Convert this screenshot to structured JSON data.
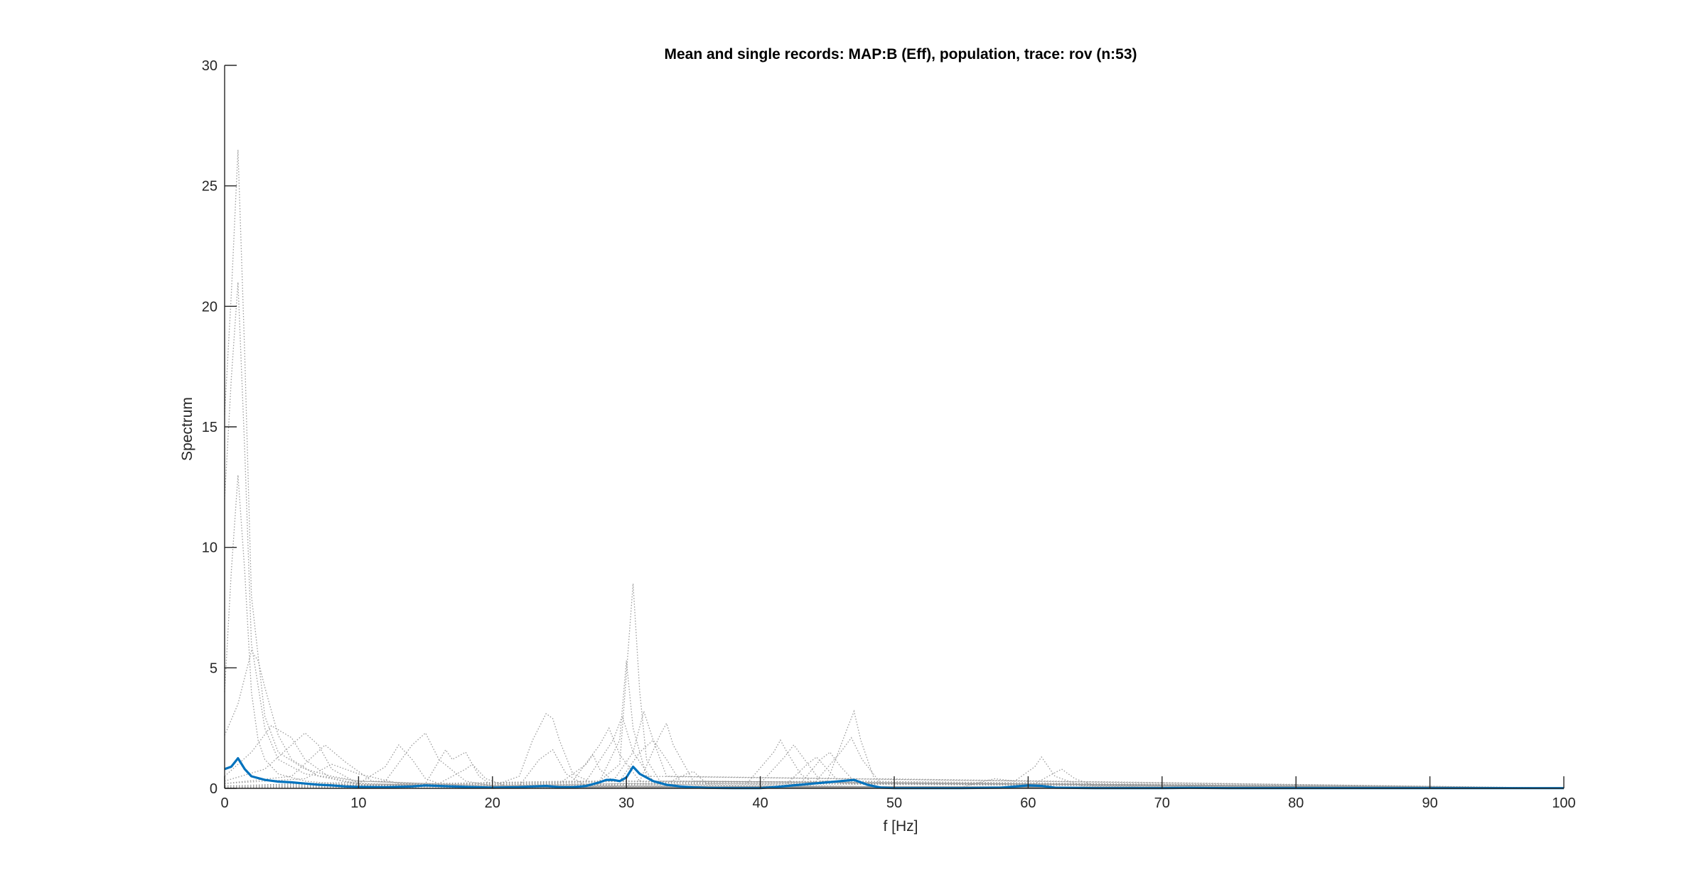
{
  "chart_data": {
    "type": "line",
    "title": "Mean and single records: MAP:B (Eff), population, trace: rov (n:53)",
    "xlabel": "f [Hz]",
    "ylabel": "Spectrum",
    "xlim": [
      0,
      100
    ],
    "ylim": [
      0,
      30
    ],
    "xticks": [
      0,
      10,
      20,
      30,
      40,
      50,
      60,
      70,
      80,
      90,
      100
    ],
    "yticks": [
      0,
      5,
      10,
      15,
      20,
      25,
      30
    ],
    "xtick_labels": [
      "0",
      "10",
      "20",
      "30",
      "40",
      "50",
      "60",
      "70",
      "80",
      "90",
      "100"
    ],
    "ytick_labels": [
      "0",
      "5",
      "10",
      "15",
      "20",
      "25",
      "30"
    ],
    "grid": false,
    "colors": {
      "mean": "#0072BD",
      "single": "#9a9a9a",
      "axis": "#262626"
    },
    "series": [
      {
        "role": "mean",
        "style": "solid",
        "x": [
          0,
          0.5,
          1,
          1.5,
          2,
          3,
          4,
          5,
          6,
          7,
          8,
          9,
          10,
          12,
          14,
          15,
          16,
          18,
          20,
          22,
          24,
          25,
          26,
          27,
          28,
          28.5,
          29,
          29.5,
          30,
          30.5,
          31,
          31.5,
          32,
          33,
          34,
          35,
          36,
          38,
          40,
          41,
          42,
          43,
          44,
          45,
          46,
          47,
          48,
          49,
          50,
          55,
          58,
          60,
          61,
          62,
          65,
          70,
          72,
          75,
          80,
          90,
          100
        ],
        "y": [
          0.8,
          0.9,
          1.25,
          0.8,
          0.5,
          0.35,
          0.28,
          0.25,
          0.2,
          0.15,
          0.12,
          0.08,
          0.06,
          0.05,
          0.08,
          0.12,
          0.1,
          0.06,
          0.03,
          0.05,
          0.1,
          0.05,
          0.05,
          0.1,
          0.25,
          0.35,
          0.35,
          0.3,
          0.45,
          0.9,
          0.6,
          0.45,
          0.3,
          0.15,
          0.08,
          0.04,
          0.02,
          0.01,
          0.01,
          0.05,
          0.1,
          0.15,
          0.2,
          0.25,
          0.3,
          0.35,
          0.15,
          0.03,
          0.01,
          0.01,
          0.03,
          0.12,
          0.1,
          0.03,
          0.01,
          0.01,
          0.02,
          0.01,
          0.01,
          0.01,
          0.01
        ]
      },
      {
        "role": "single",
        "style": "dotted",
        "x": [
          0,
          0.5,
          1,
          1.5,
          2,
          3,
          4,
          6,
          8,
          10,
          15,
          20,
          30,
          40,
          50,
          60,
          70,
          80,
          100
        ],
        "y": [
          15.5,
          20.5,
          26.5,
          18,
          8,
          3,
          1.5,
          0.8,
          0.5,
          0.3,
          0.2,
          0.15,
          0.3,
          0.15,
          0.05,
          0.05,
          0.02,
          0.01,
          0.01
        ]
      },
      {
        "role": "single",
        "style": "dotted",
        "x": [
          0,
          0.5,
          1,
          1.5,
          2,
          3,
          4,
          6,
          10,
          20,
          30,
          40,
          60,
          100
        ],
        "y": [
          12,
          17,
          21,
          14,
          6,
          2.5,
          1.2,
          0.6,
          0.3,
          0.1,
          0.2,
          0.1,
          0.03,
          0.01
        ]
      },
      {
        "role": "single",
        "style": "dotted",
        "x": [
          0,
          0.5,
          1,
          1.5,
          2,
          2.5,
          3,
          4,
          6,
          10,
          20,
          40,
          100
        ],
        "y": [
          4,
          9,
          13,
          9,
          4,
          2,
          1.2,
          0.6,
          0.3,
          0.1,
          0.05,
          0.02,
          0.01
        ]
      },
      {
        "role": "single",
        "style": "dotted",
        "x": [
          0,
          1,
          2,
          2.5,
          3,
          4,
          5,
          7,
          10,
          20,
          100
        ],
        "y": [
          2.2,
          3.5,
          5.7,
          5.3,
          4.2,
          2.2,
          1.2,
          0.5,
          0.2,
          0.05,
          0.01
        ]
      },
      {
        "role": "single",
        "style": "dotted",
        "x": [
          0,
          2,
          3.5,
          5,
          6,
          8,
          10,
          20,
          100
        ],
        "y": [
          0.5,
          1.5,
          2.6,
          2.1,
          1.2,
          0.4,
          0.15,
          0.05,
          0.01
        ]
      },
      {
        "role": "single",
        "style": "dotted",
        "x": [
          0,
          3,
          5,
          6,
          7,
          8,
          10,
          20,
          100
        ],
        "y": [
          0.3,
          0.8,
          1.8,
          2.3,
          1.8,
          0.8,
          0.2,
          0.05,
          0.01
        ]
      },
      {
        "role": "single",
        "style": "dotted",
        "x": [
          0,
          5,
          7.5,
          9,
          11,
          20,
          100
        ],
        "y": [
          0.2,
          0.5,
          1.8,
          1.1,
          0.3,
          0.05,
          0.01
        ]
      },
      {
        "role": "single",
        "style": "dotted",
        "x": [
          0,
          6,
          8,
          10,
          13,
          20,
          100
        ],
        "y": [
          0.2,
          0.4,
          1.0,
          0.6,
          0.2,
          0.05,
          0.01
        ]
      },
      {
        "role": "single",
        "style": "dotted",
        "x": [
          0,
          10,
          12,
          13,
          14,
          15,
          16,
          18,
          20,
          100
        ],
        "y": [
          0.1,
          0.2,
          0.9,
          1.8,
          1.2,
          0.4,
          0.2,
          0.1,
          0.05,
          0.01
        ]
      },
      {
        "role": "single",
        "style": "dotted",
        "x": [
          0,
          12,
          14,
          15,
          16,
          18,
          20,
          100
        ],
        "y": [
          0.1,
          0.3,
          1.8,
          2.3,
          1.2,
          0.3,
          0.1,
          0.01
        ]
      },
      {
        "role": "single",
        "style": "dotted",
        "x": [
          0,
          15,
          16.5,
          17,
          18,
          19,
          20,
          100
        ],
        "y": [
          0.05,
          0.2,
          1.6,
          1.2,
          1.5,
          0.5,
          0.1,
          0.01
        ]
      },
      {
        "role": "single",
        "style": "dotted",
        "x": [
          0,
          16,
          18,
          18.5,
          19.5,
          21,
          100
        ],
        "y": [
          0.05,
          0.2,
          0.8,
          1.0,
          0.4,
          0.1,
          0.01
        ]
      },
      {
        "role": "single",
        "style": "dotted",
        "x": [
          0,
          20,
          22,
          23,
          24,
          24.5,
          25,
          26,
          28,
          100
        ],
        "y": [
          0.05,
          0.1,
          0.5,
          2.0,
          3.1,
          2.9,
          2.0,
          0.6,
          0.1,
          0.01
        ]
      },
      {
        "role": "single",
        "style": "dotted",
        "x": [
          0,
          22,
          23.5,
          24.5,
          25.5,
          27,
          100
        ],
        "y": [
          0.05,
          0.1,
          1.2,
          1.6,
          0.6,
          0.1,
          0.01
        ]
      },
      {
        "role": "single",
        "style": "dotted",
        "x": [
          0,
          25,
          27,
          27.5,
          28,
          29,
          100
        ],
        "y": [
          0.05,
          0.2,
          1.0,
          1.4,
          0.8,
          0.3,
          0.01
        ]
      },
      {
        "role": "single",
        "style": "dotted",
        "x": [
          0,
          26,
          28,
          28.7,
          29.5,
          31,
          100
        ],
        "y": [
          0.05,
          0.3,
          1.8,
          2.5,
          1.4,
          0.3,
          0.01
        ]
      },
      {
        "role": "single",
        "style": "dotted",
        "x": [
          0,
          27,
          29,
          29.7,
          30.5,
          32,
          100
        ],
        "y": [
          0.05,
          0.3,
          2.0,
          3.0,
          1.5,
          0.3,
          0.01
        ]
      },
      {
        "role": "single",
        "style": "dotted",
        "x": [
          0,
          28,
          29.5,
          30,
          30.5,
          31.5,
          100
        ],
        "y": [
          0.05,
          0.3,
          2.0,
          5.3,
          2.5,
          0.5,
          0.01
        ]
      },
      {
        "role": "single",
        "style": "dotted",
        "x": [
          0,
          28,
          29.5,
          30.5,
          31,
          31.5,
          32.5,
          100
        ],
        "y": [
          0.05,
          0.3,
          1.0,
          8.5,
          4.0,
          1.2,
          0.3,
          0.01
        ]
      },
      {
        "role": "single",
        "style": "dotted",
        "x": [
          0,
          29,
          30.5,
          31.3,
          32,
          33,
          100
        ],
        "y": [
          0.05,
          0.3,
          1.5,
          3.2,
          2.0,
          0.5,
          0.01
        ]
      },
      {
        "role": "single",
        "style": "dotted",
        "x": [
          0,
          29.5,
          31,
          32,
          33,
          34,
          100
        ],
        "y": [
          0.05,
          0.3,
          1.5,
          2.0,
          1.2,
          0.3,
          0.01
        ]
      },
      {
        "role": "single",
        "style": "dotted",
        "x": [
          0,
          31,
          32.5,
          33,
          33.5,
          35,
          100
        ],
        "y": [
          0.05,
          0.3,
          2.2,
          2.7,
          1.8,
          0.3,
          0.01
        ]
      },
      {
        "role": "single",
        "style": "dotted",
        "x": [
          0,
          33,
          34.5,
          35,
          36,
          100
        ],
        "y": [
          0.05,
          0.2,
          0.6,
          0.7,
          0.2,
          0.01
        ]
      },
      {
        "role": "single",
        "style": "dotted",
        "x": [
          0,
          39,
          41,
          41.5,
          42,
          43,
          44,
          100
        ],
        "y": [
          0.02,
          0.2,
          1.5,
          2.0,
          1.5,
          0.6,
          0.2,
          0.01
        ]
      },
      {
        "role": "single",
        "style": "dotted",
        "x": [
          0,
          40,
          41.8,
          42.5,
          43.3,
          44.5,
          100
        ],
        "y": [
          0.02,
          0.2,
          1.3,
          1.8,
          1.2,
          0.3,
          0.01
        ]
      },
      {
        "role": "single",
        "style": "dotted",
        "x": [
          0,
          42,
          43.5,
          44.2,
          45,
          46,
          100
        ],
        "y": [
          0.02,
          0.2,
          1.0,
          1.3,
          0.8,
          0.2,
          0.01
        ]
      },
      {
        "role": "single",
        "style": "dotted",
        "x": [
          0,
          43,
          44.5,
          45.2,
          46,
          47,
          100
        ],
        "y": [
          0.02,
          0.2,
          1.2,
          1.5,
          0.9,
          0.3,
          0.01
        ]
      },
      {
        "role": "single",
        "style": "dotted",
        "x": [
          0,
          45,
          46.5,
          47,
          47.5,
          48.5,
          100
        ],
        "y": [
          0.02,
          0.3,
          2.5,
          3.2,
          2.0,
          0.4,
          0.01
        ]
      },
      {
        "role": "single",
        "style": "dotted",
        "x": [
          0,
          44,
          46,
          46.8,
          47.6,
          49,
          100
        ],
        "y": [
          0.02,
          0.2,
          1.5,
          2.1,
          1.2,
          0.2,
          0.01
        ]
      },
      {
        "role": "single",
        "style": "dotted",
        "x": [
          0,
          55,
          57.5,
          59,
          60.5,
          61,
          62,
          64,
          100
        ],
        "y": [
          0.01,
          0.05,
          0.4,
          0.3,
          0.9,
          1.3,
          0.5,
          0.1,
          0.01
        ]
      },
      {
        "role": "single",
        "style": "dotted",
        "x": [
          0,
          60,
          61.5,
          62.5,
          63.5,
          65,
          100
        ],
        "y": [
          0.01,
          0.05,
          0.5,
          0.8,
          0.4,
          0.1,
          0.01
        ]
      },
      {
        "role": "single",
        "style": "dotted",
        "x": [
          0,
          70,
          72,
          73,
          74,
          76,
          100
        ],
        "y": [
          0.01,
          0.02,
          0.1,
          0.15,
          0.08,
          0.02,
          0.01
        ]
      }
    ]
  }
}
